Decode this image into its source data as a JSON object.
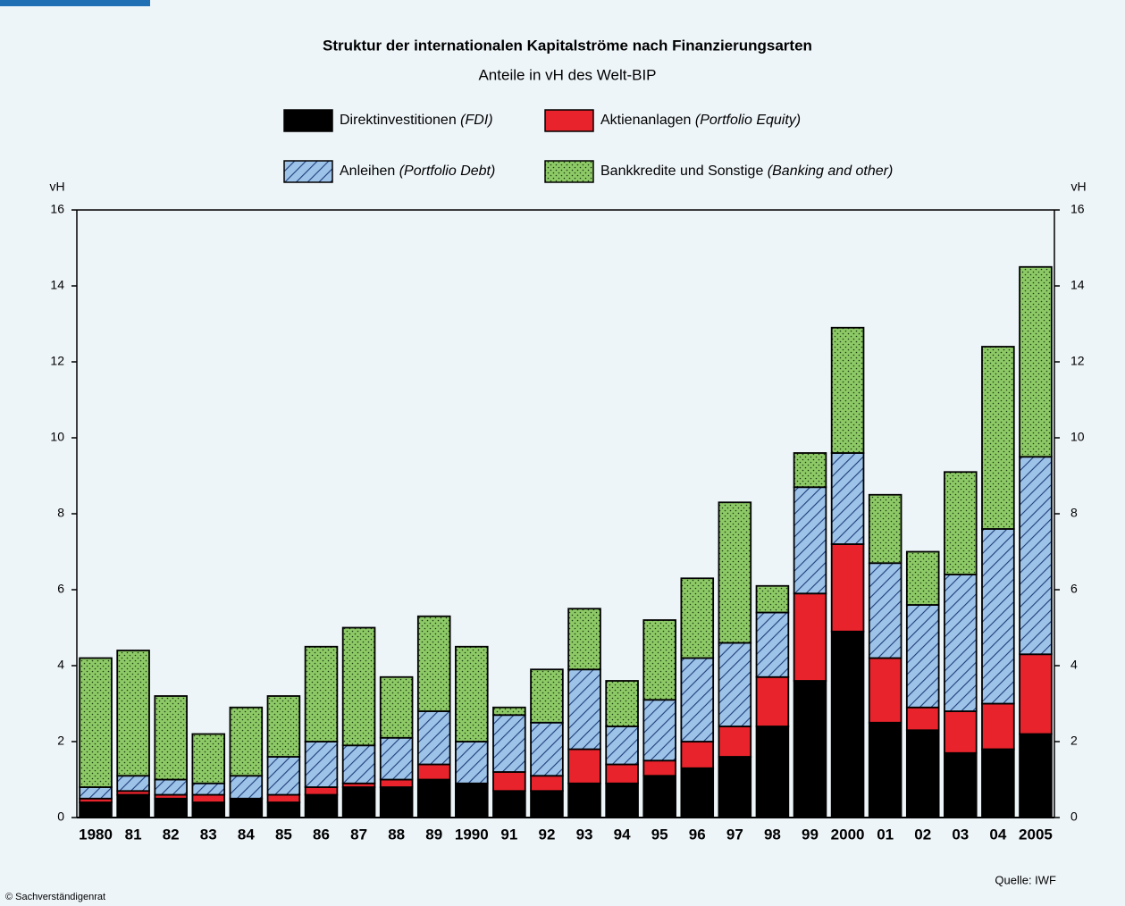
{
  "chart_data": {
    "type": "stacked_bar",
    "title": "Struktur der internationalen Kapitalströme nach Finanzierungsarten",
    "subtitle": "Anteile in vH des Welt-BIP",
    "ylabel": "vH",
    "source": "Quelle: IWF",
    "copyright": "© Sachverständigenrat",
    "categories": [
      "1980",
      "81",
      "82",
      "83",
      "84",
      "85",
      "86",
      "87",
      "88",
      "89",
      "1990",
      "91",
      "92",
      "93",
      "94",
      "95",
      "96",
      "97",
      "98",
      "99",
      "2000",
      "01",
      "02",
      "03",
      "04",
      "2005"
    ],
    "series": [
      {
        "name": "Direktinvestitionen (FDI)",
        "color": "#000000",
        "pattern": "solid",
        "values": [
          0.4,
          0.6,
          0.5,
          0.4,
          0.5,
          0.4,
          0.6,
          0.8,
          0.8,
          1.0,
          0.9,
          0.7,
          0.7,
          0.9,
          0.9,
          1.1,
          1.3,
          1.6,
          2.4,
          3.6,
          4.9,
          2.5,
          2.3,
          1.7,
          1.8,
          2.2
        ]
      },
      {
        "name": "Aktienanlagen (Portfolio Equity)",
        "color": "#e8232b",
        "pattern": "solid",
        "values": [
          0.1,
          0.1,
          0.1,
          0.2,
          0,
          0.2,
          0.2,
          0.1,
          0.2,
          0.4,
          0,
          0.5,
          0.4,
          0.9,
          0.5,
          0.4,
          0.7,
          0.8,
          1.3,
          2.3,
          2.3,
          1.7,
          0.6,
          1.1,
          1.2,
          2.1
        ]
      },
      {
        "name": "Anleihen (Portfolio Debt)",
        "color": "#9dc3e8",
        "pattern": "hatch",
        "values": [
          0.3,
          0.4,
          0.4,
          0.3,
          0.6,
          1.0,
          1.2,
          1.0,
          1.1,
          1.4,
          1.1,
          1.5,
          1.4,
          2.1,
          1.0,
          1.6,
          2.2,
          2.2,
          1.7,
          2.8,
          2.4,
          2.5,
          2.7,
          3.6,
          4.6,
          5.2
        ]
      },
      {
        "name": "Bankkredite und Sonstige (Banking and other)",
        "color": "#8dc966",
        "pattern": "dots",
        "values": [
          3.4,
          3.3,
          2.2,
          1.3,
          1.8,
          1.6,
          2.5,
          3.1,
          1.6,
          2.5,
          2.5,
          0.2,
          1.4,
          1.6,
          1.2,
          2.1,
          2.1,
          3.7,
          0.7,
          0.9,
          3.3,
          1.8,
          1.4,
          2.7,
          4.8,
          5.0
        ]
      }
    ],
    "ylim": [
      0,
      16
    ],
    "yticks": [
      0,
      2,
      4,
      6,
      8,
      10,
      12,
      14,
      16
    ]
  }
}
